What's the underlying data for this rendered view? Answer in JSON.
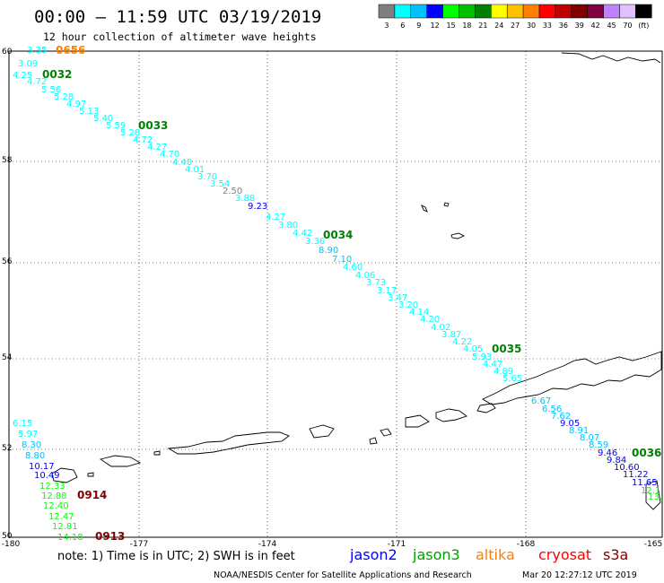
{
  "header": {
    "title": "00:00 – 11:59 UTC 03/19/2019",
    "subtitle": "12 hour collection of altimeter wave heights"
  },
  "legend": {
    "colors": [
      "#7f7f7f",
      "#00ffff",
      "#00c0ff",
      "#0000ff",
      "#00ff00",
      "#00c000",
      "#008000",
      "#ffff00",
      "#ffc000",
      "#ff8000",
      "#ff0000",
      "#c00000",
      "#800000",
      "#800040",
      "#c080ff",
      "#e0c0ff",
      "#000000"
    ],
    "labels": [
      "3",
      "6",
      "9",
      "12",
      "15",
      "18",
      "21",
      "24",
      "27",
      "30",
      "33",
      "36",
      "39",
      "42",
      "45",
      "70",
      "(ft)"
    ]
  },
  "axes": {
    "x_labels": [
      "-180",
      "-177",
      "-174",
      "-171",
      "-168",
      "-165"
    ],
    "y_labels": [
      "60",
      "58",
      "56",
      "54",
      "52",
      "50"
    ]
  },
  "observations": [
    {
      "t": "3.35",
      "c": "#00ffff"
    },
    {
      "t": "3.09",
      "c": "#00ffff"
    },
    {
      "t": "4.25",
      "c": "#00ffff"
    },
    {
      "t": "4.72",
      "c": "#00ffff"
    },
    {
      "t": "5.56",
      "c": "#00ffff"
    },
    {
      "t": "5.28",
      "c": "#00ffff"
    },
    {
      "t": "4.97",
      "c": "#00ffff"
    },
    {
      "t": "5.13",
      "c": "#00ffff"
    },
    {
      "t": "5.40",
      "c": "#00ffff"
    },
    {
      "t": "5.59",
      "c": "#00ffff"
    },
    {
      "t": "5.28",
      "c": "#00ffff"
    },
    {
      "t": "4.72",
      "c": "#00ffff"
    },
    {
      "t": "4.27",
      "c": "#00ffff"
    },
    {
      "t": "4.70",
      "c": "#00ffff"
    },
    {
      "t": "4.40",
      "c": "#00ffff"
    },
    {
      "t": "4.01",
      "c": "#00ffff"
    },
    {
      "t": "3.70",
      "c": "#00ffff"
    },
    {
      "t": "3.54",
      "c": "#00ffff"
    },
    {
      "t": "2.50",
      "c": "#7f7f7f"
    },
    {
      "t": "3.88",
      "c": "#00ffff"
    },
    {
      "t": "9.23",
      "c": "#0000ff"
    },
    {
      "t": "4.27",
      "c": "#00ffff"
    },
    {
      "t": "3.80",
      "c": "#00ffff"
    },
    {
      "t": "4.42",
      "c": "#00ffff"
    },
    {
      "t": "3.36",
      "c": "#00ffff"
    },
    {
      "t": "8.90",
      "c": "#00c0ff"
    },
    {
      "t": "7.10",
      "c": "#00c0ff"
    },
    {
      "t": "4.60",
      "c": "#00ffff"
    },
    {
      "t": "4.06",
      "c": "#00ffff"
    },
    {
      "t": "3.73",
      "c": "#00ffff"
    },
    {
      "t": "3.17",
      "c": "#00ffff"
    },
    {
      "t": "3.47",
      "c": "#00ffff"
    },
    {
      "t": "3.20",
      "c": "#00ffff"
    },
    {
      "t": "4.14",
      "c": "#00ffff"
    },
    {
      "t": "4.20",
      "c": "#00ffff"
    },
    {
      "t": "4.02",
      "c": "#00ffff"
    },
    {
      "t": "3.87",
      "c": "#00ffff"
    },
    {
      "t": "4.22",
      "c": "#00ffff"
    },
    {
      "t": "4.05",
      "c": "#00ffff"
    },
    {
      "t": "5.93",
      "c": "#00ffff"
    },
    {
      "t": "4.47",
      "c": "#00ffff"
    },
    {
      "t": "4.89",
      "c": "#00ffff"
    },
    {
      "t": "5.65",
      "c": "#00ffff"
    },
    {
      "t": "6.67",
      "c": "#00c0ff"
    },
    {
      "t": "6.56",
      "c": "#00c0ff"
    },
    {
      "t": "7.62",
      "c": "#00c0ff"
    },
    {
      "t": "9.05",
      "c": "#0000ff"
    },
    {
      "t": "8.91",
      "c": "#00c0ff"
    },
    {
      "t": "8.07",
      "c": "#00c0ff"
    },
    {
      "t": "8.59",
      "c": "#00c0ff"
    },
    {
      "t": "9.46",
      "c": "#0000ff"
    },
    {
      "t": "9.84",
      "c": "#0000ff"
    },
    {
      "t": "10.60",
      "c": "#0000ff"
    },
    {
      "t": "11.22",
      "c": "#0000ff"
    },
    {
      "t": "11.65",
      "c": "#0000ff"
    },
    {
      "t": "12.1",
      "c": "#00ff00"
    },
    {
      "t": "13.",
      "c": "#00ff00"
    },
    {
      "t": "6.15",
      "c": "#00ffff"
    },
    {
      "t": "5.97",
      "c": "#00ffff"
    },
    {
      "t": "8.30",
      "c": "#00c0ff"
    },
    {
      "t": "8.80",
      "c": "#00c0ff"
    },
    {
      "t": "10.17",
      "c": "#0000ff"
    },
    {
      "t": "10.49",
      "c": "#0000ff"
    },
    {
      "t": "12.33",
      "c": "#00ff00"
    },
    {
      "t": "12.88",
      "c": "#00ff00"
    },
    {
      "t": "12.40",
      "c": "#00ff00"
    },
    {
      "t": "12.47",
      "c": "#00ff00"
    },
    {
      "t": "12.81",
      "c": "#00ff00"
    },
    {
      "t": "14.18",
      "c": "#00ff00"
    }
  ],
  "time_labels": [
    {
      "t": "0656",
      "c": "#ff8000"
    },
    {
      "t": "0032",
      "c": "#008000"
    },
    {
      "t": "0033",
      "c": "#008000"
    },
    {
      "t": "0034",
      "c": "#008000"
    },
    {
      "t": "0035",
      "c": "#008000"
    },
    {
      "t": "0036",
      "c": "#008000"
    },
    {
      "t": "0914",
      "c": "#800000"
    },
    {
      "t": "0913",
      "c": "#800000"
    }
  ],
  "footer": {
    "note": "note:  1) Time is in UTC;  2) SWH is in feet",
    "satellites": [
      {
        "name": "jason2",
        "color": "#0000ff"
      },
      {
        "name": "jason3",
        "color": "#00a000"
      },
      {
        "name": "altika",
        "color": "#ff8000"
      },
      {
        "name": "cryosat",
        "color": "#ff0000"
      },
      {
        "name": "s3a",
        "color": "#800000"
      }
    ],
    "credit": "NOAA/NESDIS Center for Satellite Applications and Research",
    "timestamp": "Mar 20 12:27:12 UTC 2019"
  }
}
